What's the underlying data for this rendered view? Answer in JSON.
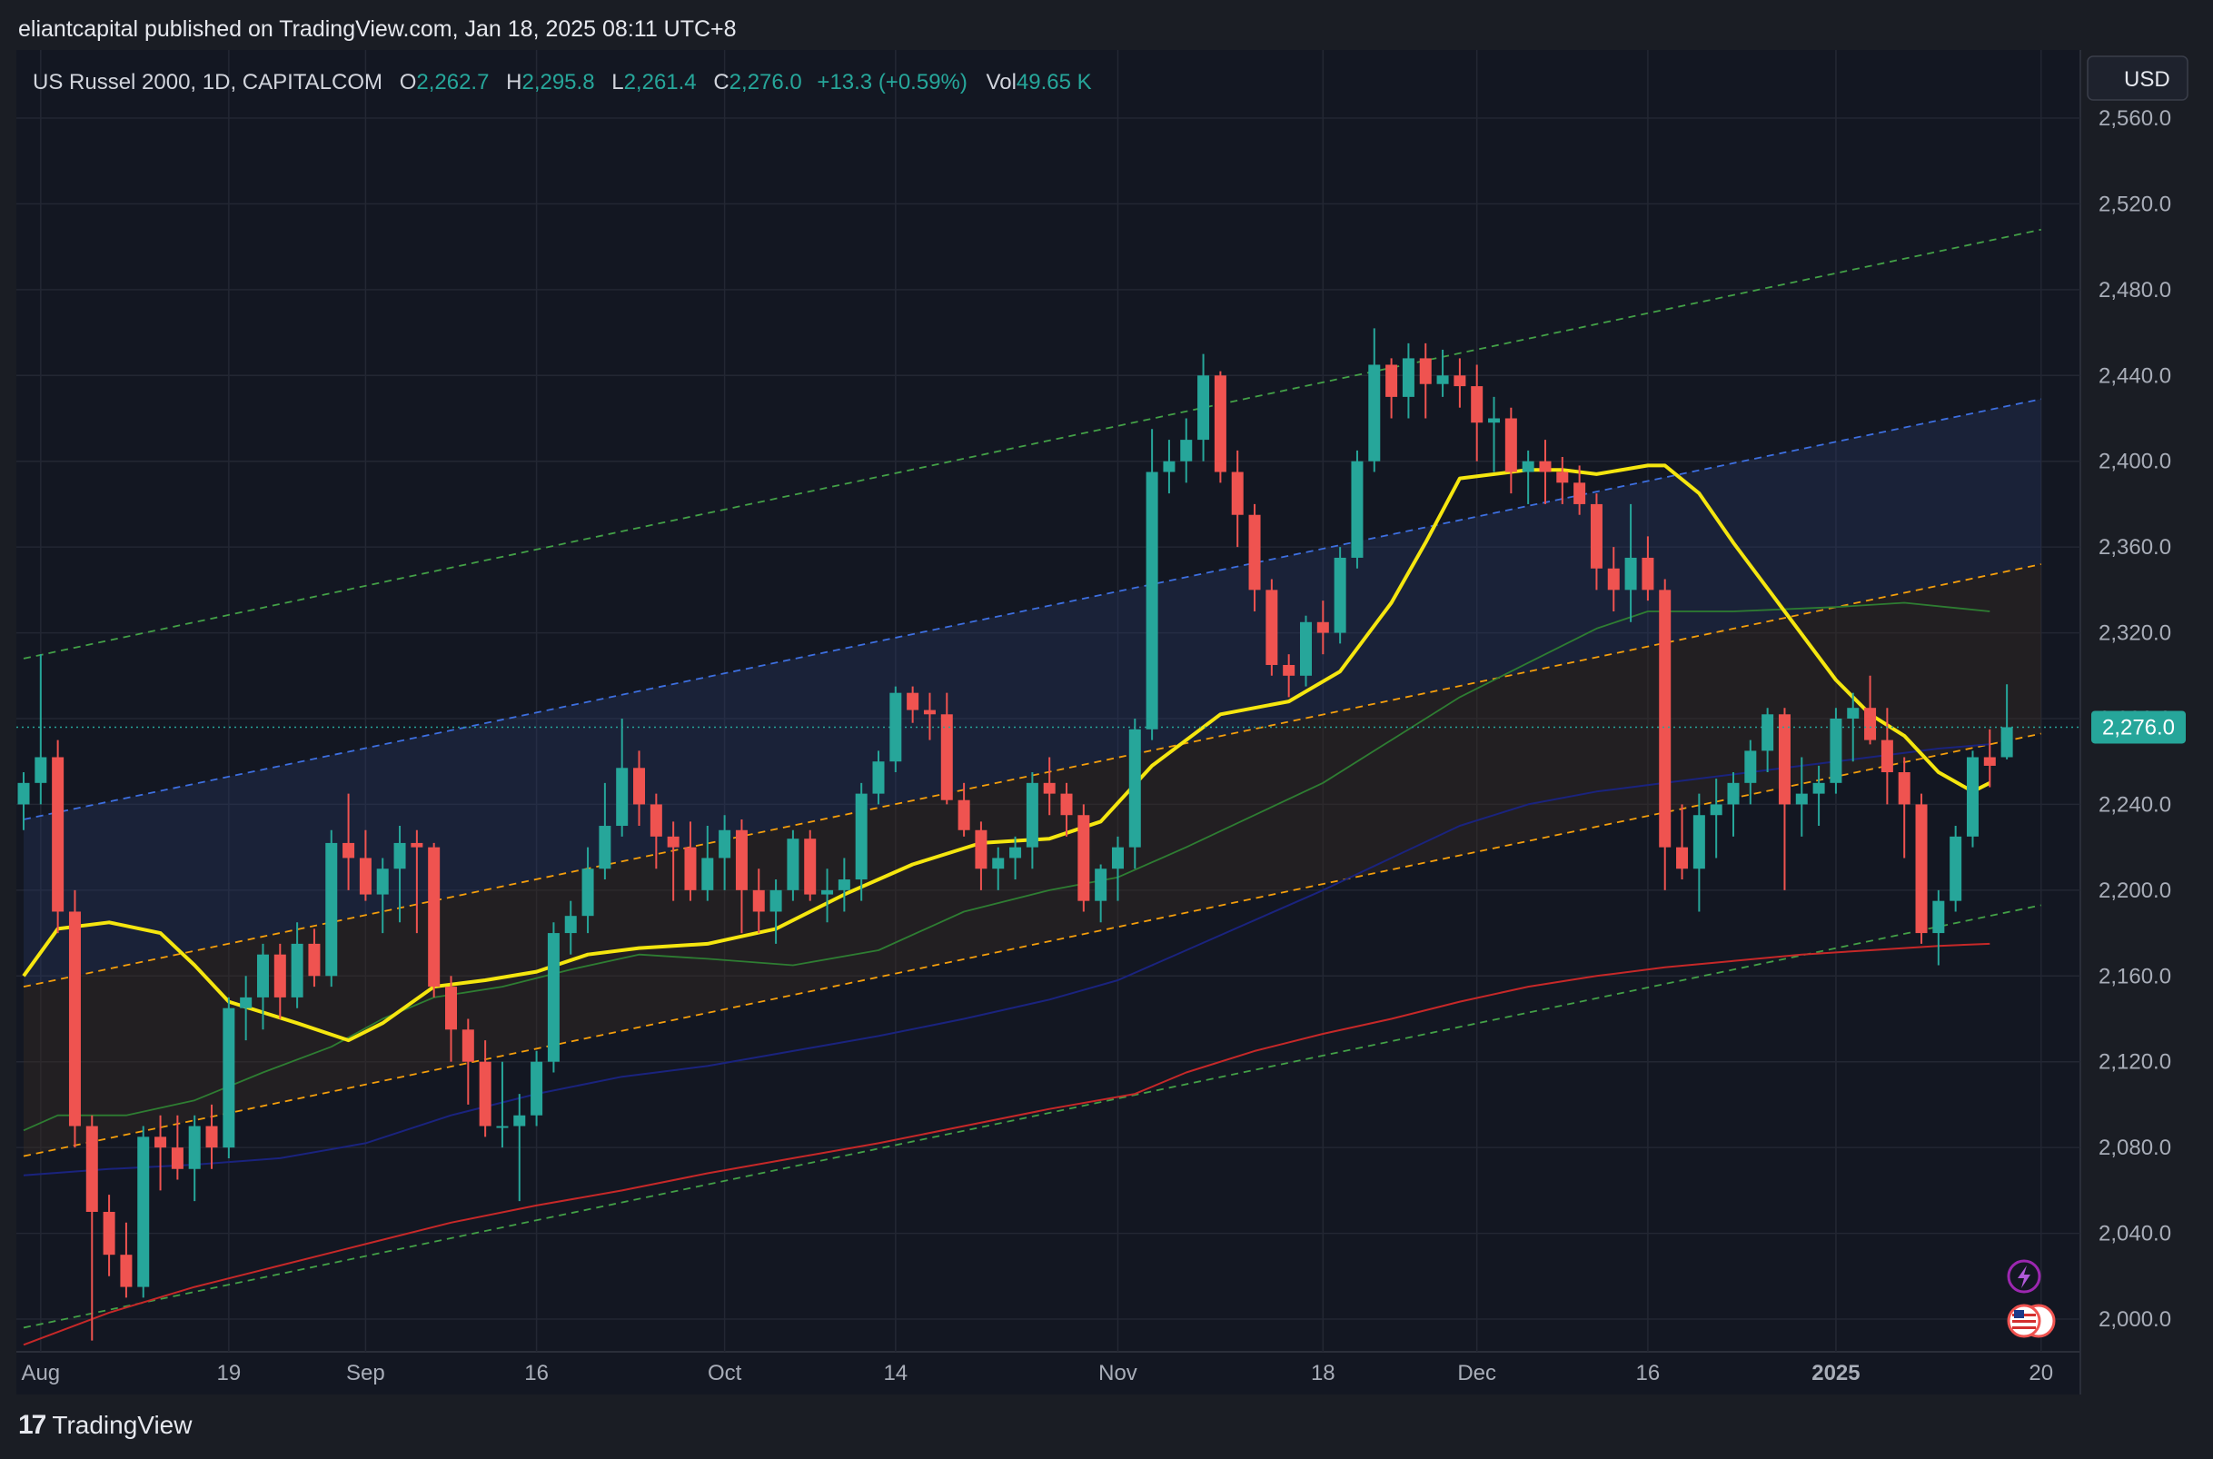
{
  "header": {
    "text": "eliantcapital published on TradingView.com, Jan 18, 2025 08:11 UTC+8"
  },
  "legend": {
    "symbol": "US Russel 2000, 1D, CAPITALCOM",
    "o_label": "O",
    "o_value": "2,262.7",
    "h_label": "H",
    "h_value": "2,295.8",
    "l_label": "L",
    "l_value": "2,261.4",
    "c_label": "C",
    "c_value": "2,276.0",
    "change": "+13.3 (+0.59%)",
    "vol_label": "Vol",
    "vol_value": "49.65 K"
  },
  "currency": "USD",
  "last_price_label": "2,276.0",
  "footer": {
    "logo": "17",
    "brand": "TradingView"
  },
  "colors": {
    "up": "#26a69a",
    "down": "#ef5350",
    "background": "#131722",
    "ma20": "#f5e60f",
    "ma50": "#2e7d32",
    "ma100": "#1a237e",
    "ma200": "#c62828"
  },
  "chart_data": {
    "type": "candlestick",
    "y_ticks": [
      "2,560.0",
      "2,520.0",
      "2,480.0",
      "2,440.0",
      "2,400.0",
      "2,360.0",
      "2,320.0",
      "2,280.0",
      "2,240.0",
      "2,200.0",
      "2,160.0",
      "2,120.0",
      "2,080.0",
      "2,040.0",
      "2,000.0"
    ],
    "y_values": [
      2560,
      2520,
      2480,
      2440,
      2400,
      2360,
      2320,
      2280,
      2240,
      2200,
      2160,
      2120,
      2080,
      2040,
      2000
    ],
    "x_ticks": [
      {
        "label": "Aug",
        "bar": 1
      },
      {
        "label": "19",
        "bar": 12
      },
      {
        "label": "Sep",
        "bar": 20
      },
      {
        "label": "16",
        "bar": 30
      },
      {
        "label": "Oct",
        "bar": 41
      },
      {
        "label": "14",
        "bar": 51
      },
      {
        "label": "Nov",
        "bar": 64
      },
      {
        "label": "18",
        "bar": 76
      },
      {
        "label": "Dec",
        "bar": 85
      },
      {
        "label": "16",
        "bar": 95
      },
      {
        "label": "2025",
        "bar": 106
      },
      {
        "label": "20",
        "bar": 118
      }
    ],
    "candles": [
      [
        2240,
        2255,
        2228,
        2250
      ],
      [
        2250,
        2310,
        2240,
        2262
      ],
      [
        2262,
        2270,
        2180,
        2190
      ],
      [
        2190,
        2200,
        2080,
        2090
      ],
      [
        2090,
        2095,
        1990,
        2050
      ],
      [
        2050,
        2058,
        2020,
        2030
      ],
      [
        2030,
        2045,
        2010,
        2015
      ],
      [
        2015,
        2090,
        2010,
        2085
      ],
      [
        2085,
        2095,
        2060,
        2080
      ],
      [
        2080,
        2095,
        2065,
        2070
      ],
      [
        2070,
        2095,
        2055,
        2090
      ],
      [
        2090,
        2100,
        2070,
        2080
      ],
      [
        2080,
        2150,
        2075,
        2145
      ],
      [
        2145,
        2160,
        2130,
        2150
      ],
      [
        2150,
        2175,
        2135,
        2170
      ],
      [
        2170,
        2175,
        2140,
        2150
      ],
      [
        2150,
        2185,
        2145,
        2175
      ],
      [
        2175,
        2182,
        2155,
        2160
      ],
      [
        2160,
        2228,
        2155,
        2222
      ],
      [
        2222,
        2245,
        2200,
        2215
      ],
      [
        2215,
        2228,
        2195,
        2198
      ],
      [
        2198,
        2215,
        2180,
        2210
      ],
      [
        2210,
        2230,
        2185,
        2222
      ],
      [
        2222,
        2228,
        2180,
        2220
      ],
      [
        2220,
        2222,
        2150,
        2155
      ],
      [
        2155,
        2160,
        2120,
        2135
      ],
      [
        2135,
        2140,
        2100,
        2120
      ],
      [
        2120,
        2130,
        2085,
        2090
      ],
      [
        2090,
        2120,
        2080,
        2090
      ],
      [
        2090,
        2105,
        2055,
        2095
      ],
      [
        2095,
        2125,
        2090,
        2120
      ],
      [
        2120,
        2185,
        2115,
        2180
      ],
      [
        2180,
        2195,
        2170,
        2188
      ],
      [
        2188,
        2220,
        2180,
        2210
      ],
      [
        2210,
        2250,
        2205,
        2230
      ],
      [
        2230,
        2280,
        2225,
        2257
      ],
      [
        2257,
        2265,
        2230,
        2240
      ],
      [
        2240,
        2245,
        2210,
        2225
      ],
      [
        2225,
        2232,
        2195,
        2220
      ],
      [
        2220,
        2232,
        2195,
        2200
      ],
      [
        2200,
        2230,
        2195,
        2215
      ],
      [
        2215,
        2235,
        2200,
        2228
      ],
      [
        2228,
        2233,
        2180,
        2200
      ],
      [
        2200,
        2210,
        2180,
        2190
      ],
      [
        2190,
        2205,
        2175,
        2200
      ],
      [
        2200,
        2228,
        2195,
        2224
      ],
      [
        2224,
        2228,
        2195,
        2198
      ],
      [
        2198,
        2210,
        2185,
        2200
      ],
      [
        2200,
        2215,
        2190,
        2205
      ],
      [
        2205,
        2250,
        2195,
        2245
      ],
      [
        2245,
        2265,
        2240,
        2260
      ],
      [
        2260,
        2295,
        2255,
        2292
      ],
      [
        2292,
        2295,
        2278,
        2284
      ],
      [
        2284,
        2292,
        2270,
        2282
      ],
      [
        2282,
        2292,
        2240,
        2242
      ],
      [
        2242,
        2250,
        2225,
        2228
      ],
      [
        2228,
        2232,
        2200,
        2210
      ],
      [
        2210,
        2220,
        2200,
        2215
      ],
      [
        2215,
        2225,
        2205,
        2220
      ],
      [
        2220,
        2255,
        2210,
        2250
      ],
      [
        2250,
        2262,
        2235,
        2245
      ],
      [
        2245,
        2250,
        2225,
        2235
      ],
      [
        2235,
        2240,
        2190,
        2195
      ],
      [
        2195,
        2212,
        2185,
        2210
      ],
      [
        2210,
        2225,
        2195,
        2220
      ],
      [
        2220,
        2280,
        2210,
        2275
      ],
      [
        2275,
        2415,
        2270,
        2395
      ],
      [
        2395,
        2410,
        2385,
        2400
      ],
      [
        2400,
        2420,
        2390,
        2410
      ],
      [
        2410,
        2450,
        2400,
        2440
      ],
      [
        2440,
        2442,
        2390,
        2395
      ],
      [
        2395,
        2405,
        2360,
        2375
      ],
      [
        2375,
        2380,
        2330,
        2340
      ],
      [
        2340,
        2345,
        2300,
        2305
      ],
      [
        2305,
        2310,
        2290,
        2300
      ],
      [
        2300,
        2328,
        2295,
        2325
      ],
      [
        2325,
        2335,
        2310,
        2320
      ],
      [
        2320,
        2360,
        2315,
        2355
      ],
      [
        2355,
        2405,
        2350,
        2400
      ],
      [
        2400,
        2462,
        2395,
        2445
      ],
      [
        2445,
        2448,
        2420,
        2430
      ],
      [
        2430,
        2455,
        2420,
        2448
      ],
      [
        2448,
        2455,
        2420,
        2436
      ],
      [
        2436,
        2452,
        2430,
        2440
      ],
      [
        2440,
        2448,
        2425,
        2435
      ],
      [
        2435,
        2445,
        2400,
        2418
      ],
      [
        2418,
        2430,
        2395,
        2420
      ],
      [
        2420,
        2425,
        2385,
        2395
      ],
      [
        2395,
        2405,
        2380,
        2400
      ],
      [
        2400,
        2410,
        2380,
        2395
      ],
      [
        2395,
        2402,
        2380,
        2390
      ],
      [
        2390,
        2398,
        2375,
        2380
      ],
      [
        2380,
        2385,
        2340,
        2350
      ],
      [
        2350,
        2360,
        2330,
        2340
      ],
      [
        2340,
        2380,
        2325,
        2355
      ],
      [
        2355,
        2365,
        2335,
        2340
      ],
      [
        2340,
        2345,
        2200,
        2220
      ],
      [
        2220,
        2240,
        2205,
        2210
      ],
      [
        2210,
        2245,
        2190,
        2235
      ],
      [
        2235,
        2252,
        2215,
        2240
      ],
      [
        2240,
        2255,
        2225,
        2250
      ],
      [
        2250,
        2270,
        2240,
        2265
      ],
      [
        2265,
        2285,
        2255,
        2282
      ],
      [
        2282,
        2285,
        2200,
        2240
      ],
      [
        2240,
        2262,
        2225,
        2245
      ],
      [
        2245,
        2258,
        2230,
        2250
      ],
      [
        2250,
        2285,
        2245,
        2280
      ],
      [
        2280,
        2292,
        2260,
        2285
      ],
      [
        2285,
        2300,
        2268,
        2270
      ],
      [
        2270,
        2285,
        2240,
        2255
      ],
      [
        2255,
        2262,
        2215,
        2240
      ],
      [
        2240,
        2245,
        2175,
        2180
      ],
      [
        2180,
        2200,
        2165,
        2195
      ],
      [
        2195,
        2230,
        2190,
        2225
      ],
      [
        2225,
        2265,
        2220,
        2262
      ],
      [
        2262,
        2275,
        2248,
        2258
      ],
      [
        2262,
        2296,
        2261,
        2276
      ]
    ],
    "series": [
      {
        "points": [
          [
            0,
            2160
          ],
          [
            2,
            2182
          ],
          [
            5,
            2185
          ],
          [
            8,
            2180
          ],
          [
            10,
            2165
          ],
          [
            12,
            2148
          ],
          [
            16,
            2138
          ],
          [
            19,
            2130
          ],
          [
            21,
            2138
          ],
          [
            24,
            2155
          ],
          [
            27,
            2158
          ],
          [
            30,
            2162
          ],
          [
            33,
            2170
          ],
          [
            36,
            2173
          ],
          [
            40,
            2175
          ],
          [
            44,
            2182
          ],
          [
            48,
            2198
          ],
          [
            52,
            2212
          ],
          [
            56,
            2222
          ],
          [
            60,
            2224
          ],
          [
            63,
            2232
          ],
          [
            66,
            2258
          ],
          [
            70,
            2282
          ],
          [
            74,
            2288
          ],
          [
            77,
            2302
          ],
          [
            80,
            2334
          ],
          [
            82,
            2362
          ],
          [
            84,
            2392
          ],
          [
            88,
            2396
          ],
          [
            90,
            2396
          ],
          [
            92,
            2394
          ],
          [
            95,
            2398
          ],
          [
            96,
            2398
          ],
          [
            98,
            2385
          ],
          [
            100,
            2362
          ],
          [
            103,
            2330
          ],
          [
            106,
            2298
          ],
          [
            108,
            2282
          ],
          [
            110,
            2272
          ],
          [
            112,
            2255
          ],
          [
            114,
            2246
          ],
          [
            115,
            2250
          ]
        ]
      },
      {
        "points": [
          [
            0,
            2088
          ],
          [
            2,
            2095
          ],
          [
            6,
            2095
          ],
          [
            10,
            2102
          ],
          [
            14,
            2115
          ],
          [
            18,
            2127
          ],
          [
            21,
            2140
          ],
          [
            24,
            2150
          ],
          [
            28,
            2155
          ],
          [
            32,
            2163
          ],
          [
            36,
            2170
          ],
          [
            40,
            2168
          ],
          [
            45,
            2165
          ],
          [
            50,
            2172
          ],
          [
            55,
            2190
          ],
          [
            60,
            2200
          ],
          [
            64,
            2206
          ],
          [
            68,
            2220
          ],
          [
            72,
            2235
          ],
          [
            76,
            2250
          ],
          [
            80,
            2270
          ],
          [
            84,
            2290
          ],
          [
            88,
            2306
          ],
          [
            92,
            2322
          ],
          [
            95,
            2330
          ],
          [
            100,
            2330
          ],
          [
            106,
            2332
          ],
          [
            110,
            2334
          ],
          [
            115,
            2330
          ]
        ]
      },
      {
        "points": [
          [
            0,
            2067
          ],
          [
            5,
            2070
          ],
          [
            10,
            2072
          ],
          [
            15,
            2075
          ],
          [
            20,
            2082
          ],
          [
            25,
            2095
          ],
          [
            30,
            2105
          ],
          [
            35,
            2113
          ],
          [
            40,
            2118
          ],
          [
            45,
            2125
          ],
          [
            50,
            2132
          ],
          [
            55,
            2140
          ],
          [
            60,
            2149
          ],
          [
            64,
            2158
          ],
          [
            68,
            2172
          ],
          [
            72,
            2186
          ],
          [
            76,
            2200
          ],
          [
            80,
            2215
          ],
          [
            84,
            2230
          ],
          [
            88,
            2240
          ],
          [
            92,
            2246
          ],
          [
            96,
            2250
          ],
          [
            100,
            2254
          ],
          [
            104,
            2258
          ],
          [
            108,
            2262
          ],
          [
            112,
            2266
          ],
          [
            115,
            2268
          ]
        ]
      },
      {
        "points": [
          [
            0,
            1988
          ],
          [
            5,
            2003
          ],
          [
            10,
            2015
          ],
          [
            15,
            2025
          ],
          [
            20,
            2035
          ],
          [
            25,
            2045
          ],
          [
            30,
            2053
          ],
          [
            35,
            2060
          ],
          [
            40,
            2068
          ],
          [
            45,
            2075
          ],
          [
            50,
            2082
          ],
          [
            55,
            2090
          ],
          [
            60,
            2098
          ],
          [
            65,
            2105
          ],
          [
            68,
            2115
          ],
          [
            72,
            2125
          ],
          [
            76,
            2133
          ],
          [
            80,
            2140
          ],
          [
            84,
            2148
          ],
          [
            88,
            2155
          ],
          [
            92,
            2160
          ],
          [
            96,
            2164
          ],
          [
            100,
            2167
          ],
          [
            104,
            2170
          ],
          [
            108,
            2172
          ],
          [
            112,
            2174
          ],
          [
            115,
            2175
          ]
        ]
      }
    ],
    "channel_lines": [
      [
        [
          0,
          2308
        ],
        [
          118,
          2508
        ]
      ],
      [
        [
          0,
          2233
        ],
        [
          118,
          2429
        ]
      ],
      [
        [
          0,
          2155
        ],
        [
          118,
          2352
        ]
      ],
      [
        [
          0,
          2076
        ],
        [
          118,
          2273
        ]
      ],
      [
        [
          0,
          1996
        ],
        [
          118,
          2193
        ]
      ]
    ]
  }
}
